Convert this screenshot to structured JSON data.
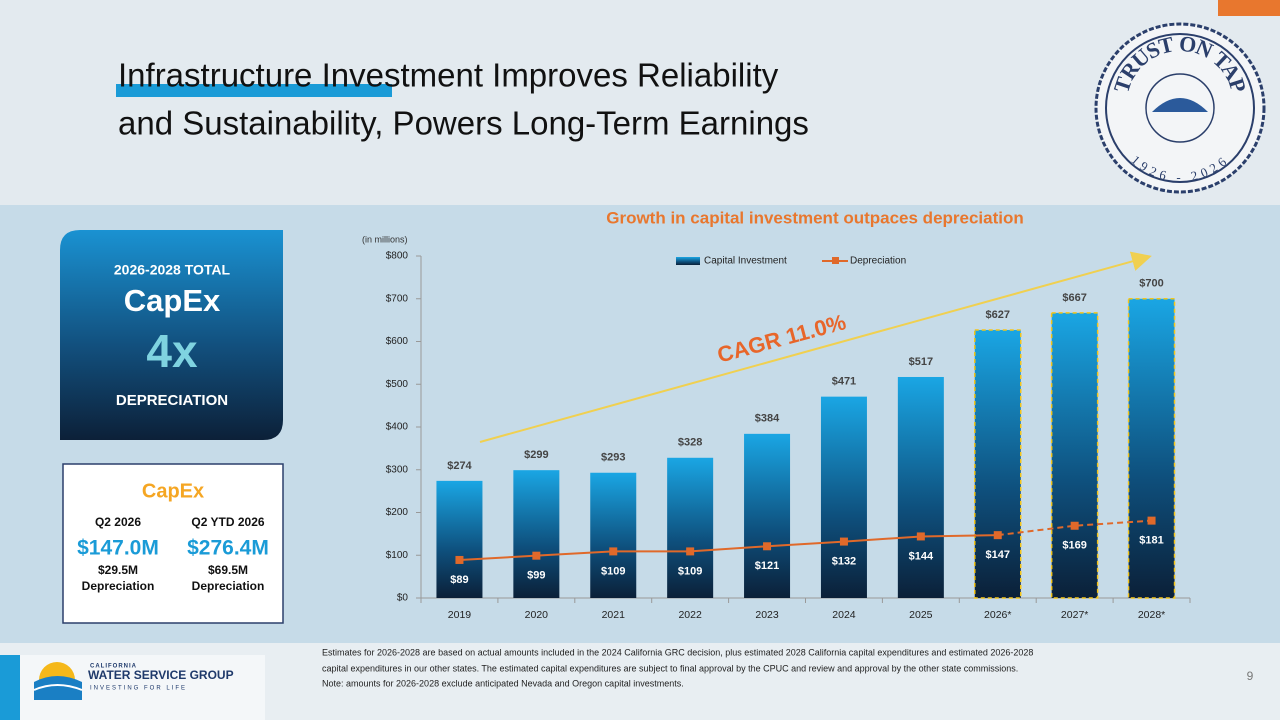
{
  "title": [
    "Infrastructure Investment Improves Reliability",
    "and Sustainability, Powers Long-Term Earnings"
  ],
  "seal": {
    "motto": "TRUST ON TAP",
    "years": "1926 - 2026"
  },
  "highlight_box": {
    "label": "2026-2028 TOTAL",
    "title": "CapEx",
    "multiple": "4x",
    "caption": "DEPRECIATION"
  },
  "capex_card": {
    "title": "CapEx",
    "columns": [
      {
        "period": "Q2 2026",
        "amount": "$147.0M",
        "depreciation": "$29.5M",
        "depreciation_label": "Depreciation"
      },
      {
        "period": "Q2 YTD 2026",
        "amount": "$276.4M",
        "depreciation": "$69.5M",
        "depreciation_label": "Depreciation"
      }
    ]
  },
  "footnote": [
    "Estimates for 2026-2028 are based on actual amounts included in the 2024 California GRC decision, plus estimated 2028 California capital expenditures and estimated 2026-2028",
    "capital expenditures in our other states. The estimated capital expenditures are subject to final approval by the CPUC and review and approval by the other state commissions.",
    "Note: amounts for 2026-2028 exclude anticipated Nevada and Oregon capital investments."
  ],
  "logo": {
    "region": "CALIFORNIA",
    "name": "WATER SERVICE GROUP",
    "tagline": "INVESTING FOR LIFE"
  },
  "page_number": "9",
  "chart_data": {
    "type": "bar",
    "title": "Growth in capital investment outpaces depreciation",
    "y_unit": "(in millions)",
    "annotation": "CAGR 11.0%",
    "categories": [
      "2019",
      "2020",
      "2021",
      "2022",
      "2023",
      "2024",
      "2025",
      "2026*",
      "2027*",
      "2028*"
    ],
    "projected": [
      false,
      false,
      false,
      false,
      false,
      false,
      false,
      true,
      true,
      true
    ],
    "series": [
      {
        "name": "Capital Investment",
        "type": "bar",
        "color": "#1aa6e4",
        "values": [
          274,
          299,
          293,
          328,
          384,
          471,
          517,
          627,
          667,
          700
        ],
        "value_labels": [
          "$274",
          "$299",
          "$293",
          "$328",
          "$384",
          "$471",
          "$517",
          "$627",
          "$667",
          "$700"
        ]
      },
      {
        "name": "Depreciation",
        "type": "line",
        "color": "#e0692a",
        "values": [
          89,
          99,
          109,
          109,
          121,
          132,
          144,
          147,
          169,
          181
        ],
        "value_labels": [
          "$89",
          "$99",
          "$109",
          "$109",
          "$121",
          "$132",
          "$144",
          "$147",
          "$169",
          "$181"
        ]
      }
    ],
    "ylim": [
      0,
      800
    ],
    "yticks": [
      {
        "value": 0,
        "label": "$0"
      },
      {
        "value": 100,
        "label": "$100"
      },
      {
        "value": 200,
        "label": "$200"
      },
      {
        "value": 300,
        "label": "$300"
      },
      {
        "value": 400,
        "label": "$400"
      },
      {
        "value": 500,
        "label": "$500"
      },
      {
        "value": 600,
        "label": "$600"
      },
      {
        "value": 700,
        "label": "$700"
      },
      {
        "value": 800,
        "label": "$800"
      }
    ],
    "legend": "top"
  }
}
